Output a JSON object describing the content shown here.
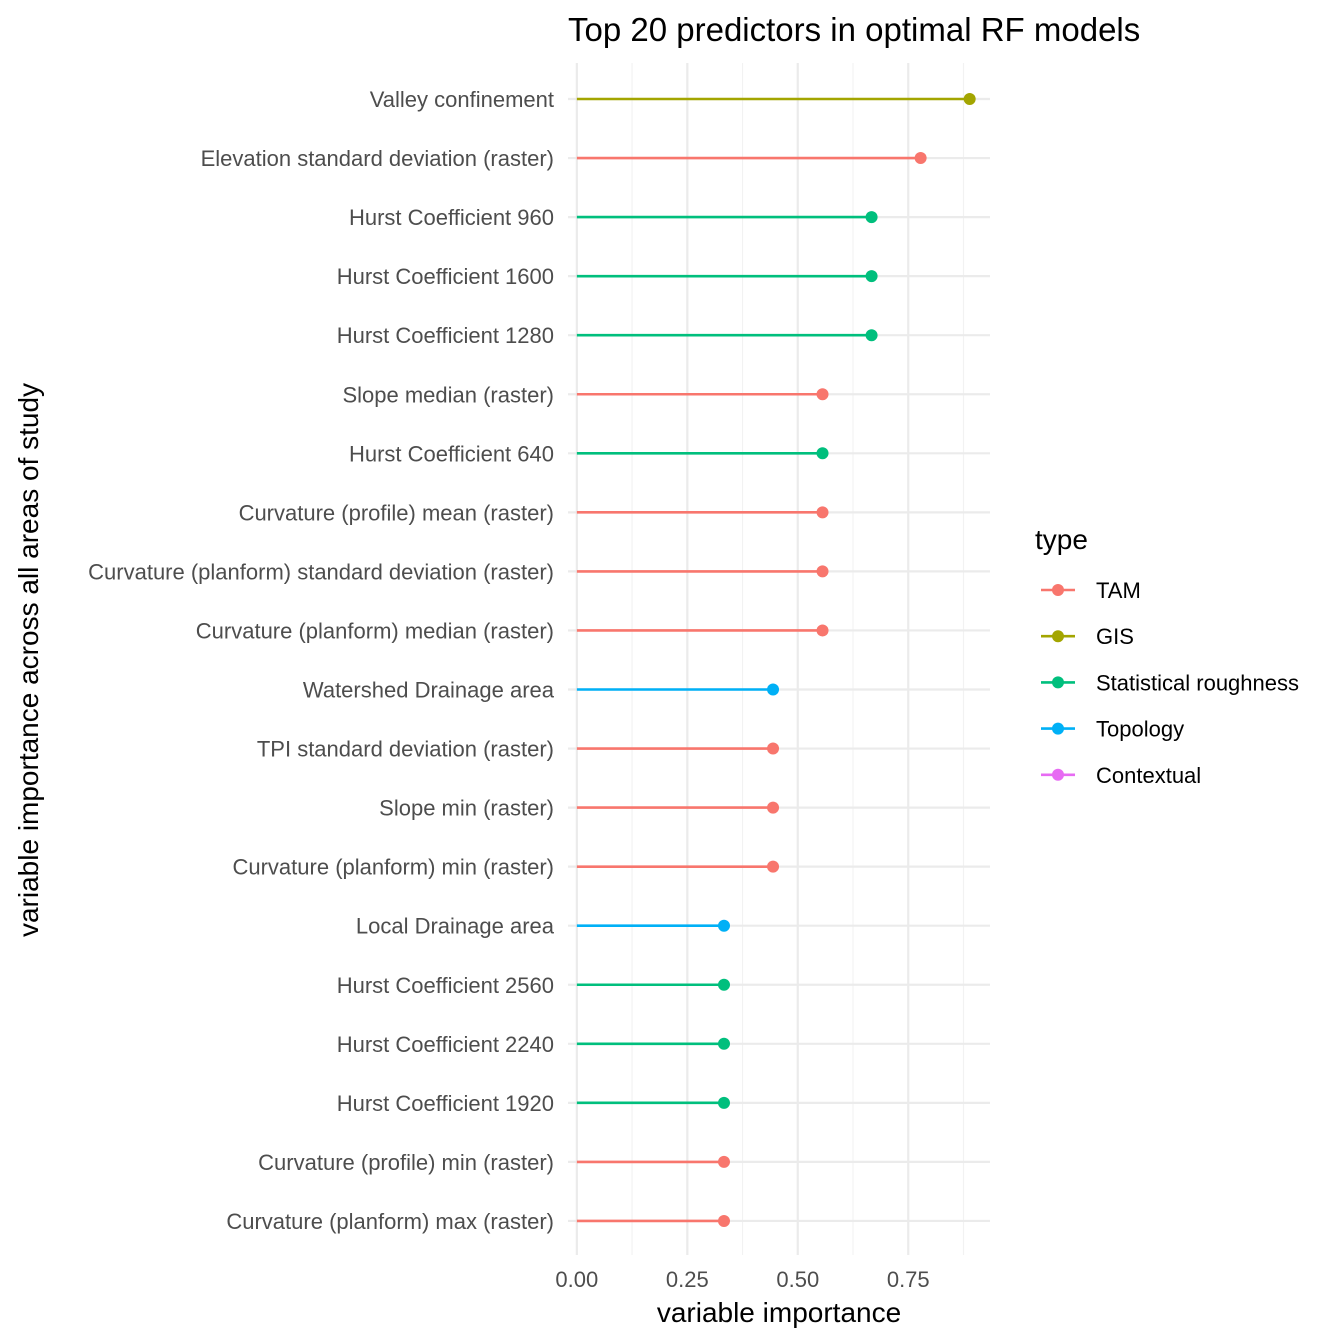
{
  "chart_data": {
    "type": "lollipop",
    "title": "Top 20 predictors in optimal RF models",
    "xlabel": "variable importance",
    "ylabel": "variable importance across all areas of study",
    "xlim": [
      -0.02,
      0.935
    ],
    "x_ticks": [
      0,
      0.25,
      0.5,
      0.75
    ],
    "x_tick_labels": [
      "0.00",
      "0.25",
      "0.50",
      "0.75"
    ],
    "grid": true,
    "legend": {
      "title": "type",
      "position": "right",
      "entries": [
        {
          "name": "TAM",
          "color": "#f8766d"
        },
        {
          "name": "GIS",
          "color": "#a3a500"
        },
        {
          "name": "Statistical roughness",
          "color": "#00bf7d"
        },
        {
          "name": "Topology",
          "color": "#00b0f6"
        },
        {
          "name": "Contextual",
          "color": "#e76bf3"
        }
      ]
    },
    "points": [
      {
        "label": "Valley confinement",
        "value": 0.889,
        "type": "GIS"
      },
      {
        "label": "Elevation standard deviation (raster)",
        "value": 0.778,
        "type": "TAM"
      },
      {
        "label": "Hurst Coefficient 960",
        "value": 0.667,
        "type": "Statistical roughness"
      },
      {
        "label": "Hurst Coefficient 1600",
        "value": 0.667,
        "type": "Statistical roughness"
      },
      {
        "label": "Hurst Coefficient 1280",
        "value": 0.667,
        "type": "Statistical roughness"
      },
      {
        "label": "Slope median (raster)",
        "value": 0.556,
        "type": "TAM"
      },
      {
        "label": "Hurst Coefficient 640",
        "value": 0.556,
        "type": "Statistical roughness"
      },
      {
        "label": "Curvature (profile) mean (raster)",
        "value": 0.556,
        "type": "TAM"
      },
      {
        "label": "Curvature (planform) standard deviation (raster)",
        "value": 0.556,
        "type": "TAM"
      },
      {
        "label": "Curvature (planform) median (raster)",
        "value": 0.556,
        "type": "TAM"
      },
      {
        "label": "Watershed Drainage area",
        "value": 0.444,
        "type": "Topology"
      },
      {
        "label": "TPI standard deviation (raster)",
        "value": 0.444,
        "type": "TAM"
      },
      {
        "label": "Slope min (raster)",
        "value": 0.444,
        "type": "TAM"
      },
      {
        "label": "Curvature (planform) min (raster)",
        "value": 0.444,
        "type": "TAM"
      },
      {
        "label": "Local Drainage area",
        "value": 0.333,
        "type": "Topology"
      },
      {
        "label": "Hurst Coefficient 2560",
        "value": 0.333,
        "type": "Statistical roughness"
      },
      {
        "label": "Hurst Coefficient 2240",
        "value": 0.333,
        "type": "Statistical roughness"
      },
      {
        "label": "Hurst Coefficient 1920",
        "value": 0.333,
        "type": "Statistical roughness"
      },
      {
        "label": "Curvature (profile) min (raster)",
        "value": 0.333,
        "type": "TAM"
      },
      {
        "label": "Curvature (planform) max (raster)",
        "value": 0.333,
        "type": "TAM"
      }
    ]
  }
}
